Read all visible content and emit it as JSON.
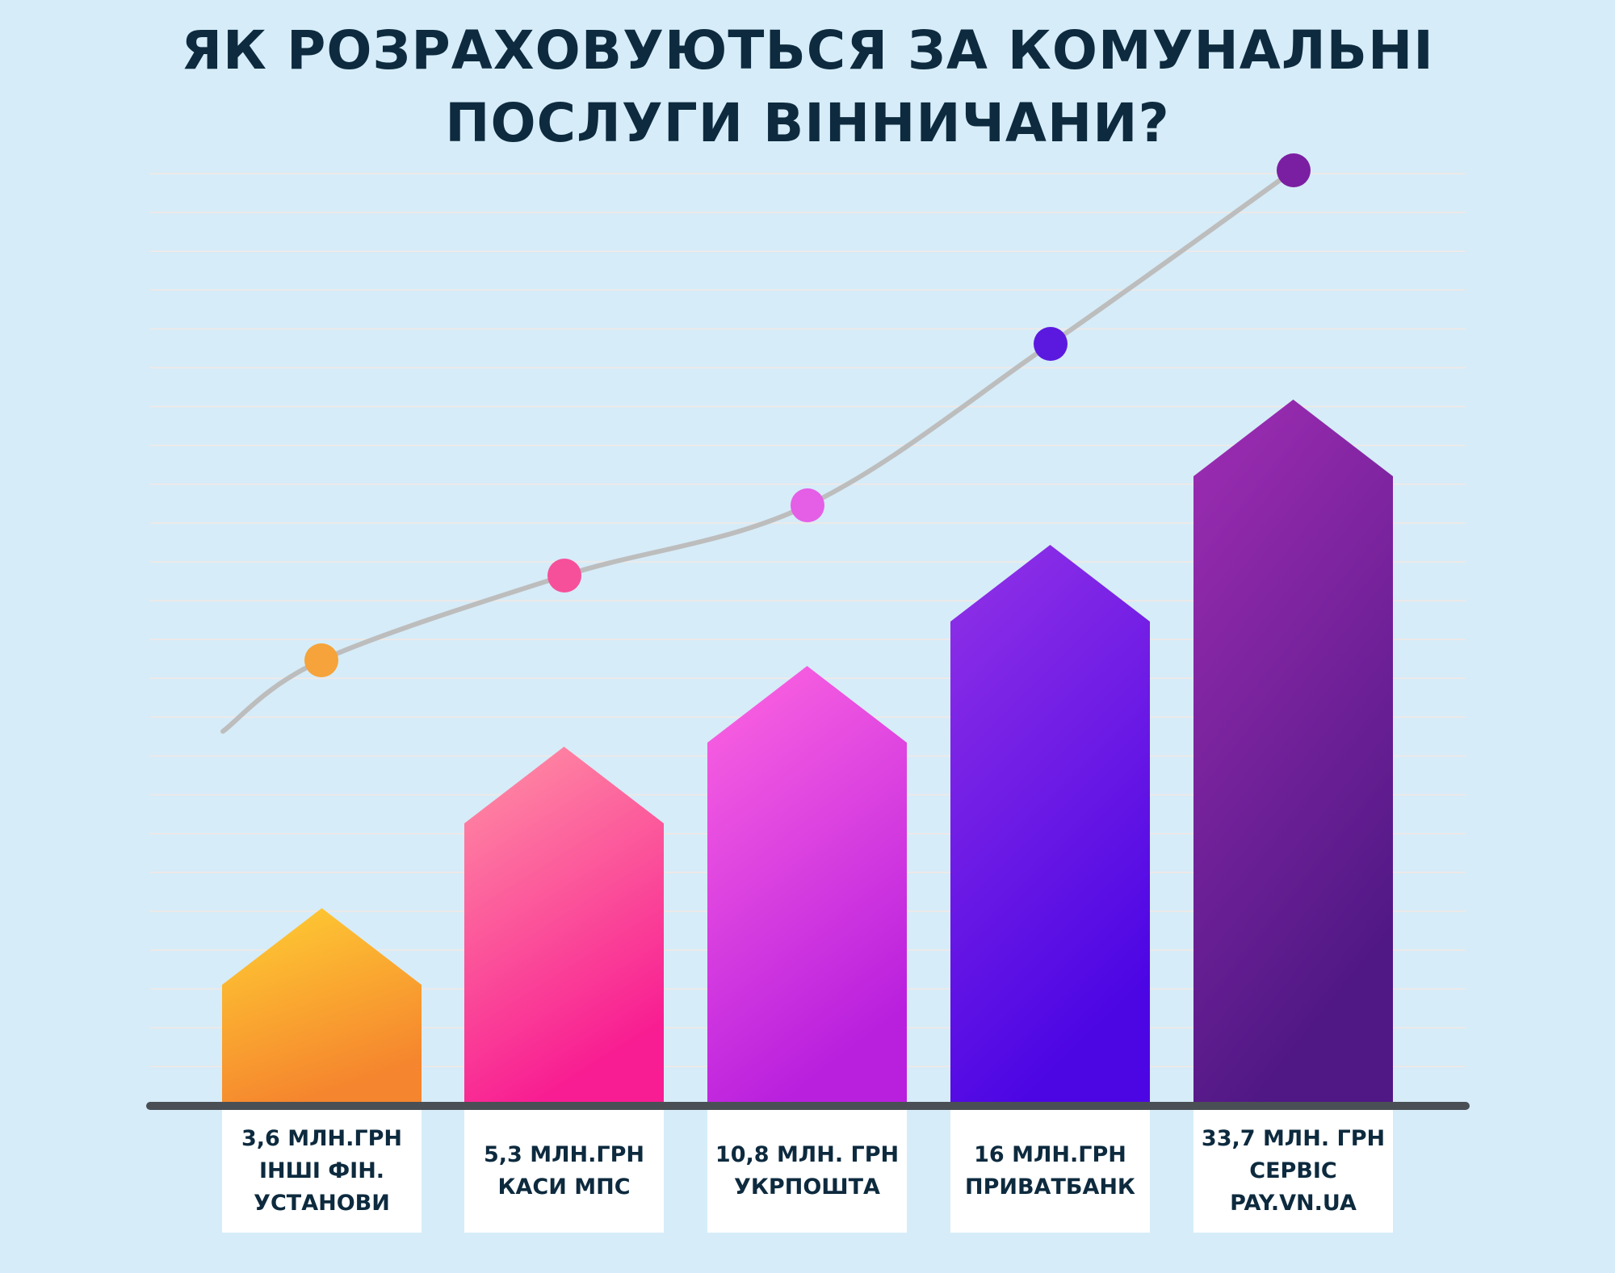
{
  "title_lines": [
    "ЯК РОЗРАХОВУЮТЬСЯ ЗА КОМУНАЛЬНІ",
    "ПОСЛУГИ ВІННИЧАНИ?"
  ],
  "chart_data": {
    "type": "bar",
    "title": "ЯК РОЗРАХОВУЮТЬСЯ ЗА КОМУНАЛЬНІ ПОСЛУГИ ВІННИЧАНИ?",
    "categories": [
      "ІНШІ ФІН. УСТАНОВИ",
      "КАСИ МПС",
      "УКРПОШТА",
      "ПРИВАТБАНК",
      "СЕРВІС PAY.VN.UA"
    ],
    "values": [
      3.6,
      5.3,
      10.8,
      16,
      33.7
    ],
    "unit": "млн грн",
    "data_labels": [
      [
        "3,6 МЛН.ГРН",
        "ІНШІ ФІН.",
        "УСТАНОВИ"
      ],
      [
        "5,3 МЛН.ГРН",
        "КАСИ МПС"
      ],
      [
        "10,8 МЛН. ГРН",
        "УКРПОШТА"
      ],
      [
        "16 МЛН.ГРН",
        "ПРИВАТБАНК"
      ],
      [
        "33,7 МЛН. ГРН",
        "СЕРВІС",
        "PAY.VN.UA"
      ]
    ],
    "bar_shape": "house",
    "trend_line": true,
    "grid": true,
    "legend": "none",
    "colors": [
      [
        "#ffcf33",
        "#f5852e"
      ],
      [
        "#ff92a4",
        "#f81d92"
      ],
      [
        "#ff66e1",
        "#b920de"
      ],
      [
        "#9232e6",
        "#4c06e4"
      ],
      [
        "#a02db4",
        "#4f1884"
      ]
    ],
    "marker_colors": [
      "#f5a33a",
      "#f6509a",
      "#e55ee6",
      "#5b19e0",
      "#7b1fa2"
    ],
    "grid_color": "#f3e8e4",
    "axis_color": "#4a4f55",
    "trend_color": "#bdbdbd"
  }
}
